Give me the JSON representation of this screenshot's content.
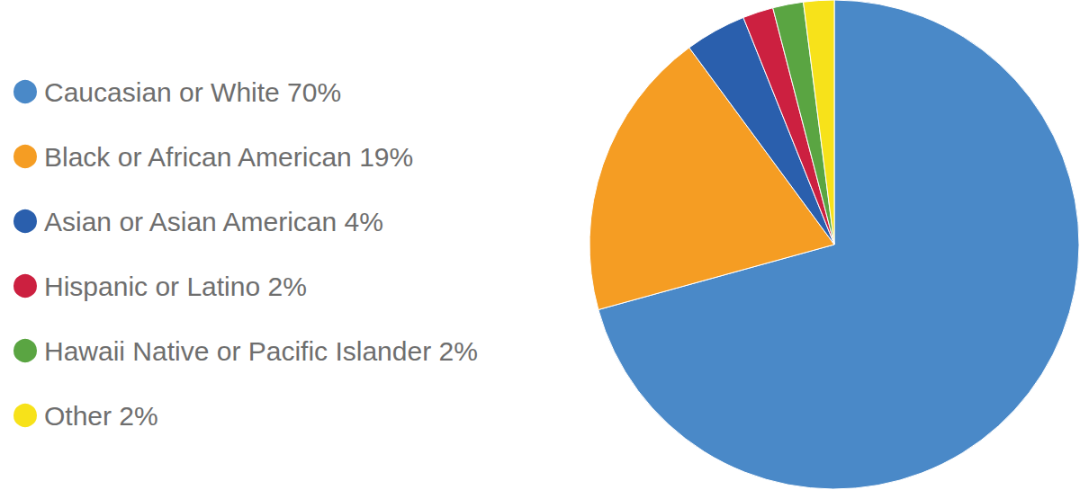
{
  "chart_data": {
    "type": "pie",
    "categories": [
      "Caucasian or White 70%",
      "Black or African American 19%",
      "Asian or Asian American 4%",
      "Hispanic or Latino 2%",
      "Hawaii Native or Pacific Islander 2%",
      "Other 2%"
    ],
    "values": [
      70,
      19,
      4,
      2,
      2,
      2
    ],
    "colors": [
      "#4a89c8",
      "#f59d23",
      "#2a5fad",
      "#cc2040",
      "#5aa542",
      "#f7e21a"
    ],
    "legend": "left"
  }
}
